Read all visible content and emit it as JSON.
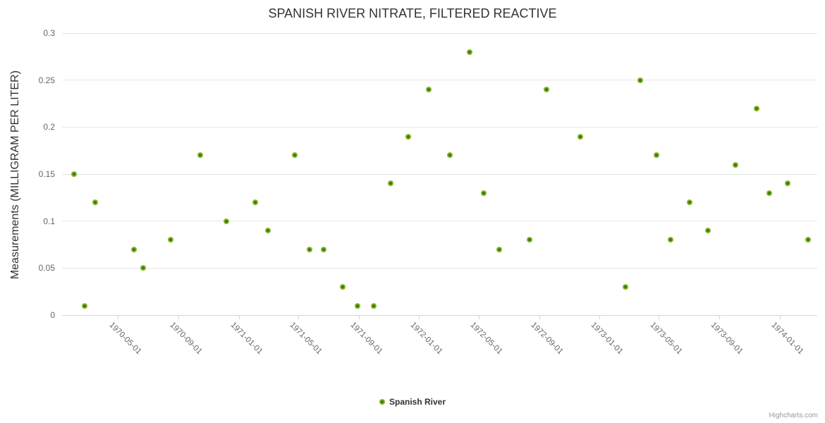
{
  "chart": {
    "title": "SPANISH RIVER NITRATE, FILTERED REACTIVE",
    "y_axis_title": "Measurements (MILLIGRAM PER LITER)",
    "legend_label": "Spanish River",
    "credits": "Highcharts.com"
  },
  "colors": {
    "marker_outer": "#84b623",
    "marker_core": "#3c7814",
    "gridline": "#e6e6e6",
    "axis_line": "#ccd6eb",
    "title_text": "#333333",
    "label_text": "#666666",
    "credits_text": "#999999"
  },
  "chart_data": {
    "type": "scatter",
    "title": "SPANISH RIVER NITRATE, FILTERED REACTIVE",
    "xlabel": "",
    "ylabel": "Measurements (MILLIGRAM PER LITER)",
    "ylim": [
      0,
      0.3
    ],
    "y_ticks": [
      "0",
      "0.05",
      "0.1",
      "0.15",
      "0.2",
      "0.25",
      "0.3"
    ],
    "x_ticks": [
      "1970-05-01",
      "1970-09-01",
      "1971-01-01",
      "1971-05-01",
      "1971-09-01",
      "1972-01-01",
      "1972-05-01",
      "1972-09-01",
      "1973-01-01",
      "1973-05-01",
      "1973-09-01",
      "1974-01-01"
    ],
    "xlim": [
      "1970-01-08",
      "1974-03-18"
    ],
    "grid": true,
    "legend_position": "bottom-center",
    "series": [
      {
        "name": "Spanish River",
        "color": "#84b623",
        "points": [
          [
            "1970-02-01",
            0.15
          ],
          [
            "1970-02-22",
            0.01
          ],
          [
            "1970-03-16",
            0.12
          ],
          [
            "1970-06-02",
            0.07
          ],
          [
            "1970-06-21",
            0.05
          ],
          [
            "1970-08-16",
            0.08
          ],
          [
            "1970-10-15",
            0.17
          ],
          [
            "1970-12-07",
            0.1
          ],
          [
            "1971-02-03",
            0.12
          ],
          [
            "1971-03-01",
            0.09
          ],
          [
            "1971-04-25",
            0.17
          ],
          [
            "1971-05-24",
            0.07
          ],
          [
            "1971-06-22",
            0.07
          ],
          [
            "1971-07-30",
            0.03
          ],
          [
            "1971-08-29",
            0.01
          ],
          [
            "1971-10-01",
            0.01
          ],
          [
            "1971-11-04",
            0.14
          ],
          [
            "1971-12-10",
            0.19
          ],
          [
            "1972-01-21",
            0.24
          ],
          [
            "1972-03-03",
            0.17
          ],
          [
            "1972-04-13",
            0.28
          ],
          [
            "1972-05-11",
            0.13
          ],
          [
            "1972-06-11",
            0.07
          ],
          [
            "1972-08-12",
            0.08
          ],
          [
            "1972-09-16",
            0.24
          ],
          [
            "1972-11-23",
            0.19
          ],
          [
            "1973-02-22",
            0.03
          ],
          [
            "1973-03-25",
            0.25
          ],
          [
            "1973-04-26",
            0.17
          ],
          [
            "1973-05-25",
            0.08
          ],
          [
            "1973-07-02",
            0.12
          ],
          [
            "1973-08-09",
            0.09
          ],
          [
            "1973-10-03",
            0.16
          ],
          [
            "1973-11-15",
            0.22
          ],
          [
            "1973-12-11",
            0.13
          ],
          [
            "1974-01-17",
            0.14
          ],
          [
            "1974-02-28",
            0.08
          ]
        ]
      }
    ]
  }
}
